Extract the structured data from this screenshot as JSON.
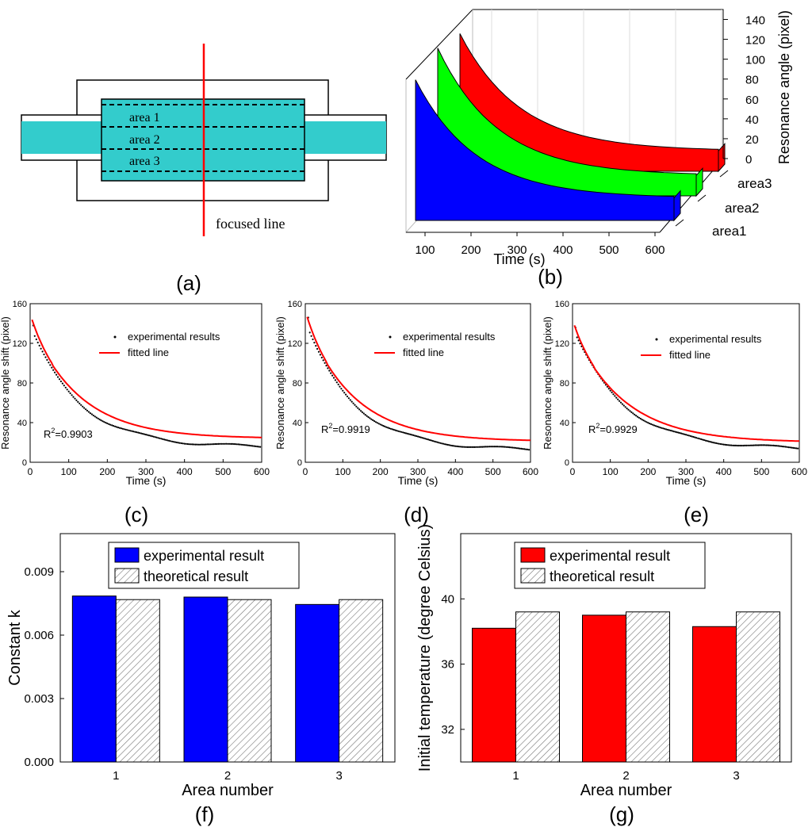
{
  "panel_labels": {
    "a": "(a)",
    "b": "(b)",
    "c": "(c)",
    "d": "(d)",
    "e": "(e)",
    "f": "(f)",
    "g": "(g)"
  },
  "diagram_a": {
    "areas": [
      "area 1",
      "area 2",
      "area 3"
    ],
    "focused_line_label": "focused line",
    "colors": {
      "fill": "#33CCCC",
      "line": "#FF0000",
      "outline": "#000000"
    }
  },
  "chart_data": [
    {
      "id": "b",
      "type": "area",
      "xlabel": "Time (s)",
      "ylabel": "Resonance angle (pixel)",
      "xticks": [
        100,
        200,
        300,
        400,
        500,
        600
      ],
      "yticks": [
        0,
        20,
        40,
        60,
        80,
        100,
        120,
        140
      ],
      "series": [
        {
          "name": "area1",
          "color": "#0000FF",
          "start": 138,
          "end": 22
        },
        {
          "name": "area2",
          "color": "#00FF00",
          "start": 145,
          "end": 20
        },
        {
          "name": "area3",
          "color": "#FF0000",
          "start": 135,
          "end": 20
        }
      ]
    },
    {
      "id": "c",
      "type": "scatter",
      "xlabel": "Time (s)",
      "ylabel": "Resonance angle shift (pixel)",
      "xlim": [
        0,
        600
      ],
      "ylim": [
        0,
        160
      ],
      "xticks": [
        0,
        100,
        200,
        300,
        400,
        500,
        600
      ],
      "yticks": [
        0,
        40,
        80,
        120,
        160
      ],
      "legend": [
        "experimental results",
        "fitted line"
      ],
      "r2_label": "R",
      "r2_sup": "2",
      "r2_value": "=0.9903",
      "experimental": {
        "A": 123,
        "k": 0.0079,
        "C": 15,
        "first": 138
      },
      "fitted": {
        "A": 117,
        "k": 0.0079,
        "C": 24
      }
    },
    {
      "id": "d",
      "type": "scatter",
      "xlabel": "Time (s)",
      "ylabel": "Resonance angle shift (pixel)",
      "xlim": [
        0,
        600
      ],
      "ylim": [
        0,
        160
      ],
      "xticks": [
        0,
        100,
        200,
        300,
        400,
        500,
        600
      ],
      "yticks": [
        0,
        40,
        80,
        120,
        160
      ],
      "legend": [
        "experimental results",
        "fitted line"
      ],
      "r2_label": "R",
      "r2_sup": "2",
      "r2_value": "=0.9919",
      "experimental": {
        "A": 130,
        "k": 0.0078,
        "C": 12,
        "first": 146
      },
      "fitted": {
        "A": 123,
        "k": 0.0078,
        "C": 21
      }
    },
    {
      "id": "e",
      "type": "scatter",
      "xlabel": "Time (s)",
      "ylabel": "Resonance angle shift (pixel)",
      "xlim": [
        0,
        600
      ],
      "ylim": [
        0,
        160
      ],
      "xticks": [
        0,
        100,
        200,
        300,
        400,
        500,
        600
      ],
      "yticks": [
        0,
        40,
        80,
        120,
        160
      ],
      "legend": [
        "experimental results",
        "fitted line"
      ],
      "r2_label": "R",
      "r2_sup": "2",
      "r2_value": "=0.9929",
      "experimental": {
        "A": 123,
        "k": 0.0074,
        "C": 13,
        "first": 136
      },
      "fitted": {
        "A": 115,
        "k": 0.0074,
        "C": 20
      }
    },
    {
      "id": "f",
      "type": "bar",
      "xlabel": "Area number",
      "ylabel": "Constant k",
      "categories": [
        "1",
        "2",
        "3"
      ],
      "ylim": [
        0,
        0.0108
      ],
      "yticks": [
        "0.000",
        "0.003",
        "0.006",
        "0.009"
      ],
      "ytick_values": [
        0,
        0.003,
        0.006,
        0.009
      ],
      "series": [
        {
          "name": "experimental result",
          "color": "#0000FF",
          "values": [
            0.00785,
            0.0078,
            0.00745
          ]
        },
        {
          "name": "theoretical result",
          "color": "hatched",
          "values": [
            0.00768,
            0.00768,
            0.00768
          ]
        }
      ]
    },
    {
      "id": "g",
      "type": "bar",
      "xlabel": "Area number",
      "ylabel": "Initial temperature (degree Celsius)",
      "categories": [
        "1",
        "2",
        "3"
      ],
      "ylim": [
        30,
        44
      ],
      "yticks": [
        "32",
        "36",
        "40"
      ],
      "ytick_values": [
        32,
        36,
        40
      ],
      "series": [
        {
          "name": "experimental result",
          "color": "#FF0000",
          "values": [
            38.2,
            39.0,
            38.3
          ]
        },
        {
          "name": "theoretical result",
          "color": "hatched",
          "values": [
            39.2,
            39.2,
            39.2
          ]
        }
      ]
    }
  ]
}
